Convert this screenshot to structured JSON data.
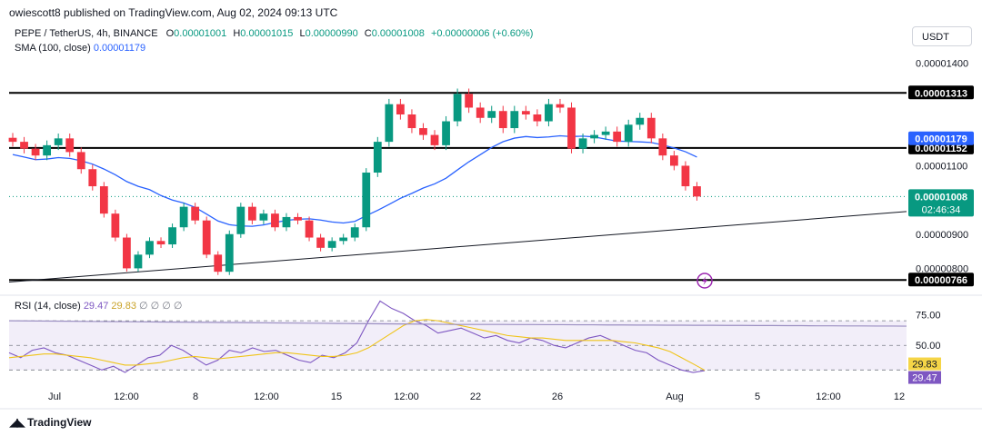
{
  "header": {
    "publisher": "owiescott8 published on TradingView.com, Aug 02, 2024 09:13 UTC"
  },
  "legend": {
    "symbol": "PEPE / TetherUS, 4h, BINANCE",
    "o_label": "O",
    "open": "0.00001001",
    "h_label": "H",
    "high": "0.00001015",
    "l_label": "L",
    "low": "0.00000990",
    "c_label": "C",
    "close": "0.00001008",
    "change": "+0.00000006 (+0.60%)",
    "sma_label": "SMA (100, close)",
    "sma_value": "0.00001179",
    "rsi_label": "RSI (14, close)",
    "rsi_value": "29.47",
    "rsi_ma_value": "29.83",
    "rsi_extra": "∅ ∅ ∅ ∅"
  },
  "currency_button": "USDT",
  "brand": "TradingView",
  "colors": {
    "up": "#089981",
    "down": "#f23645",
    "sma": "#2962ff",
    "rsi": "#7e57c2",
    "rsi_ma": "#f0c419",
    "level": "#000000"
  },
  "chart_data": [
    {
      "type": "candlestick",
      "title": "PEPE / TetherUS, 4h, BINANCE",
      "y_axis_ticks": [
        "0.00001400",
        "0.00001100",
        "0.00000900",
        "0.00000800"
      ],
      "y_axis_tick_values": [
        1.4e-05,
        1.1e-05,
        9e-06,
        8e-06
      ],
      "x_axis_ticks": [
        "Jul",
        "12:00",
        "8",
        "12:00",
        "15",
        "12:00",
        "22",
        "26",
        "Aug",
        "5",
        "12:00",
        "12"
      ],
      "ylim": [
        7.4e-06,
        1.42e-05
      ],
      "horizontal_levels": [
        1.313e-05,
        1.152e-05,
        7.66e-06
      ],
      "level_labels": [
        "0.00001313",
        "0.00001152",
        "0.00000766"
      ],
      "sma_badge": "0.00001179",
      "price_badge": "0.00001008",
      "countdown": "02:46:34",
      "trendline": [
        {
          "x": "Jul 1",
          "y": 7.6e-06
        },
        {
          "x": "Aug 12",
          "y": 9.66e-06
        }
      ],
      "series_close": [
        1.17e-05,
        1.15e-05,
        1.13e-05,
        1.16e-05,
        1.18e-05,
        1.14e-05,
        1.09e-05,
        1.04e-05,
        9.6e-06,
        8.9e-06,
        8e-06,
        8.4e-06,
        8.8e-06,
        8.7e-06,
        9.2e-06,
        9.8e-06,
        9.4e-06,
        8.4e-06,
        7.9e-06,
        9e-06,
        9.8e-06,
        9.4e-06,
        9.6e-06,
        9.2e-06,
        9.5e-06,
        9.4e-06,
        8.9e-06,
        8.6e-06,
        8.8e-06,
        8.9e-06,
        9.2e-06,
        1.08e-05,
        1.17e-05,
        1.28e-05,
        1.25e-05,
        1.21e-05,
        1.19e-05,
        1.16e-05,
        1.23e-05,
        1.31e-05,
        1.27e-05,
        1.24e-05,
        1.26e-05,
        1.21e-05,
        1.26e-05,
        1.25e-05,
        1.23e-05,
        1.28e-05,
        1.27e-05,
        1.15e-05,
        1.18e-05,
        1.19e-05,
        1.2e-05,
        1.17e-05,
        1.22e-05,
        1.24e-05,
        1.18e-05,
        1.13e-05,
        1.1e-05,
        1.04e-05,
        1.01e-05
      ]
    },
    {
      "type": "line",
      "title": "RSI (14, close)",
      "y_axis_ticks": [
        "75.00",
        "50.00"
      ],
      "y_axis_tick_values": [
        75,
        50
      ],
      "ylim": [
        0,
        90
      ],
      "band": [
        30,
        70
      ],
      "series": [
        {
          "name": "RSI",
          "values": [
            44,
            40,
            46,
            48,
            44,
            42,
            38,
            34,
            30,
            33,
            28,
            34,
            40,
            42,
            50,
            46,
            40,
            34,
            38,
            46,
            44,
            48,
            45,
            46,
            42,
            38,
            36,
            42,
            40,
            44,
            52,
            70,
            86,
            80,
            76,
            70,
            66,
            60,
            62,
            64,
            60,
            56,
            58,
            54,
            52,
            56,
            54,
            50,
            48,
            52,
            56,
            58,
            54,
            50,
            46,
            44,
            38,
            34,
            30,
            28,
            29.47
          ]
        },
        {
          "name": "RSI-based MA",
          "values": [
            40,
            41,
            42,
            43,
            43,
            42,
            41,
            40,
            38,
            36,
            34,
            34,
            35,
            36,
            38,
            40,
            41,
            40,
            39,
            40,
            41,
            42,
            43,
            44,
            44,
            43,
            42,
            41,
            41,
            42,
            44,
            48,
            54,
            60,
            66,
            70,
            71,
            70,
            68,
            66,
            64,
            62,
            60,
            58,
            57,
            56,
            56,
            55,
            54,
            54,
            54,
            54,
            54,
            53,
            52,
            50,
            48,
            45,
            40,
            35,
            29.83
          ]
        },
        {
          "name": "Long",
          "values": [
            70.0,
            69.9,
            69.8,
            69.7,
            69.6,
            69.5,
            69.4,
            69.3,
            69.2,
            69.1,
            69.0,
            68.9,
            68.8,
            68.7,
            68.6,
            68.5,
            68.4,
            68.3,
            68.2,
            68.1,
            68.0,
            67.9,
            67.8,
            67.7,
            67.6,
            67.5,
            67.4,
            67.3,
            67.2,
            67.1,
            67.0,
            67.0,
            67.0,
            67.0,
            66.9,
            66.9,
            66.8,
            66.8,
            66.7,
            66.7,
            66.6,
            66.6,
            66.5,
            66.5,
            66.4,
            66.4,
            66.3,
            66.3,
            66.2,
            66.2,
            66.1,
            66.1,
            66.0,
            66.0,
            65.9,
            65.9,
            65.8,
            65.8,
            65.7,
            65.7,
            65.6
          ]
        }
      ],
      "badges": [
        "29.83",
        "29.47"
      ]
    }
  ]
}
